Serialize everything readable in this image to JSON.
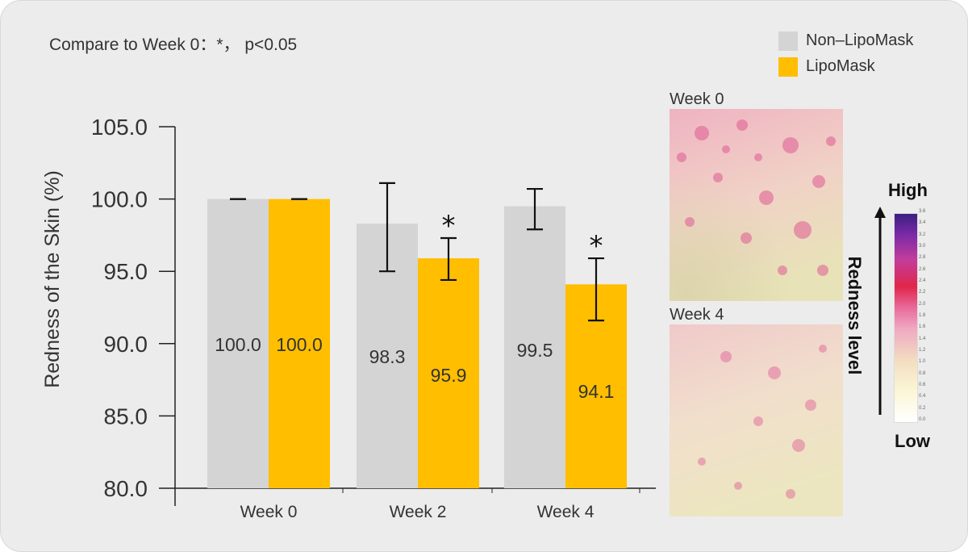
{
  "note": "Compare to Week 0：*， p<0.05",
  "legend": [
    {
      "label": "Non–LipoMask",
      "color": "#d4d4d4"
    },
    {
      "label": "LipoMask",
      "color": "#ffbe00"
    }
  ],
  "chart_data": {
    "type": "bar",
    "title": "",
    "xlabel": "",
    "ylabel": "Redness of the Skin (%)",
    "ylim": [
      80,
      105
    ],
    "yticks": [
      "80.0",
      "85.0",
      "90.0",
      "95.0",
      "100.0",
      "105.0"
    ],
    "categories": [
      "Week 0",
      "Week 2",
      "Week 4"
    ],
    "series": [
      {
        "name": "Non–LipoMask",
        "color": "#d4d4d4",
        "values": [
          100.0,
          98.3,
          99.5
        ],
        "labels": [
          "100.0",
          "98.3",
          "99.5"
        ],
        "err_low": [
          100.0,
          95.0,
          97.9
        ],
        "err_high": [
          100.0,
          101.1,
          100.7
        ],
        "significant": [
          false,
          false,
          false
        ]
      },
      {
        "name": "LipoMask",
        "color": "#ffbe00",
        "values": [
          100.0,
          95.9,
          94.1
        ],
        "labels": [
          "100.0",
          "95.9",
          "94.1"
        ],
        "err_low": [
          100.0,
          94.4,
          91.6
        ],
        "err_high": [
          100.0,
          97.3,
          95.9
        ],
        "significant": [
          false,
          true,
          true
        ]
      }
    ],
    "significance_mark": "*"
  },
  "photos": {
    "week0_label": "Week 0",
    "week4_label": "Week 4"
  },
  "scale": {
    "caption": "Redness level",
    "high": "High",
    "low": "Low",
    "ticks": [
      "3.6",
      "3.4",
      "3.2",
      "3.0",
      "2.8",
      "2.6",
      "2.4",
      "2.2",
      "2.0",
      "1.8",
      "1.6",
      "1.4",
      "1.2",
      "1.0",
      "0.8",
      "0.6",
      "0.4",
      "0.2",
      "0.0"
    ]
  }
}
